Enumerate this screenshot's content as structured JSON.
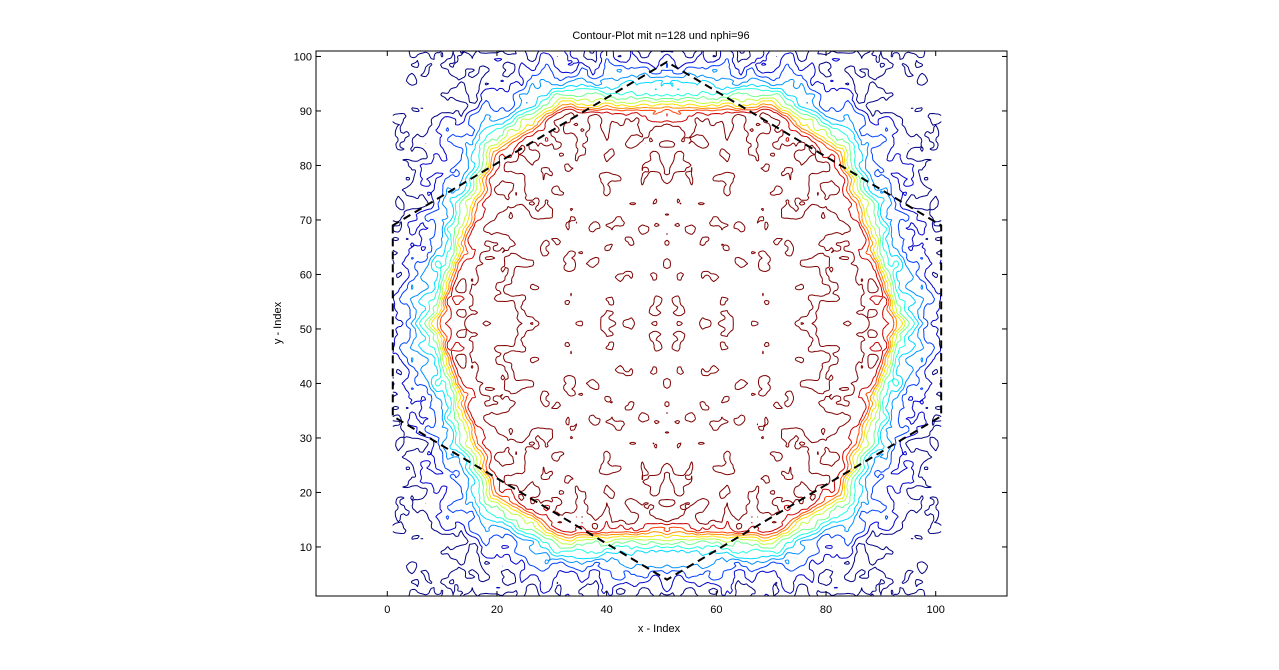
{
  "chart_data": {
    "type": "contour",
    "title": "Contour-Plot mit n=128 und nphi=96",
    "xlabel": "x - Index",
    "ylabel": "y - Index",
    "xlim": [
      -13,
      113
    ],
    "ylim": [
      1,
      101
    ],
    "x_ticks": [
      0,
      20,
      40,
      60,
      80,
      100
    ],
    "y_ticks": [
      10,
      20,
      30,
      40,
      50,
      60,
      70,
      80,
      90,
      100
    ],
    "grid": false,
    "colormap": "jet",
    "colors": [
      "#00007f",
      "#0000cd",
      "#0040ff",
      "#0090ff",
      "#00d8ff",
      "#20ffe0",
      "#70ff8f",
      "#c0ff3f",
      "#ffdf00",
      "#ff8f00",
      "#ff3f00",
      "#c80000",
      "#7f0000"
    ],
    "field": {
      "domain_x": [
        1,
        101
      ],
      "domain_y": [
        1,
        101
      ],
      "shape": "octagon",
      "octagon_vertices": [
        [
          10,
          51
        ],
        [
          20,
          82
        ],
        [
          32,
          90
        ],
        [
          70,
          90
        ],
        [
          82,
          82
        ],
        [
          92,
          51
        ],
        [
          82,
          20
        ],
        [
          70,
          13
        ],
        [
          32,
          13
        ],
        [
          20,
          20
        ]
      ],
      "inside_level": "high",
      "outside_level": "low"
    },
    "dashed_outline": {
      "style": "dashed",
      "color": "#000000",
      "vertices": [
        [
          1,
          69
        ],
        [
          1,
          34
        ],
        [
          51,
          4
        ],
        [
          101,
          34
        ],
        [
          101,
          69
        ],
        [
          51,
          99
        ]
      ]
    }
  }
}
